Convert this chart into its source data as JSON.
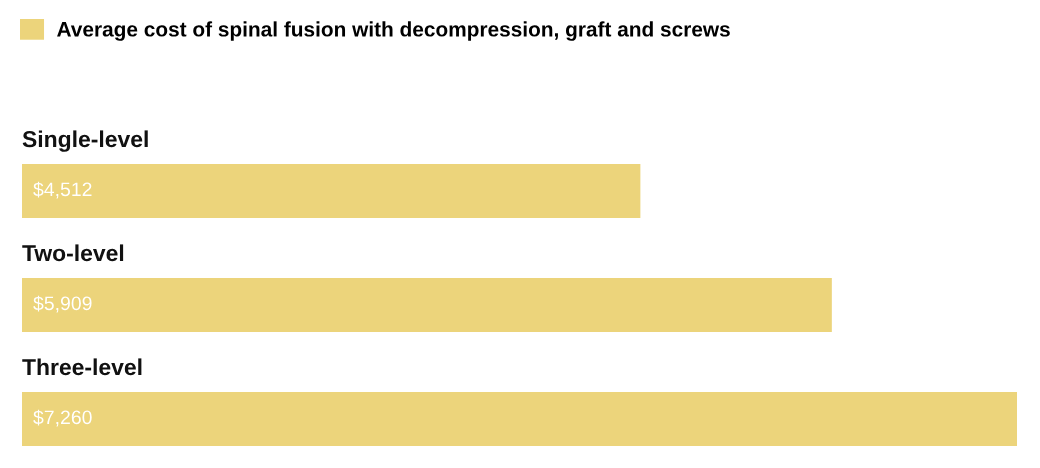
{
  "chart_data": {
    "type": "bar",
    "orientation": "horizontal",
    "categories": [
      "Single-level",
      "Two-level",
      "Three-level"
    ],
    "series": [
      {
        "name": "Average cost of spinal fusion with decompression, graft and screws",
        "color": "#ecd47b",
        "values": [
          4512,
          5909,
          7260
        ],
        "value_labels": [
          "$4,512",
          "$5,909",
          "$7,260"
        ]
      }
    ],
    "xlim": [
      0,
      7260
    ],
    "legend": "top left",
    "tick_labels": "y"
  }
}
